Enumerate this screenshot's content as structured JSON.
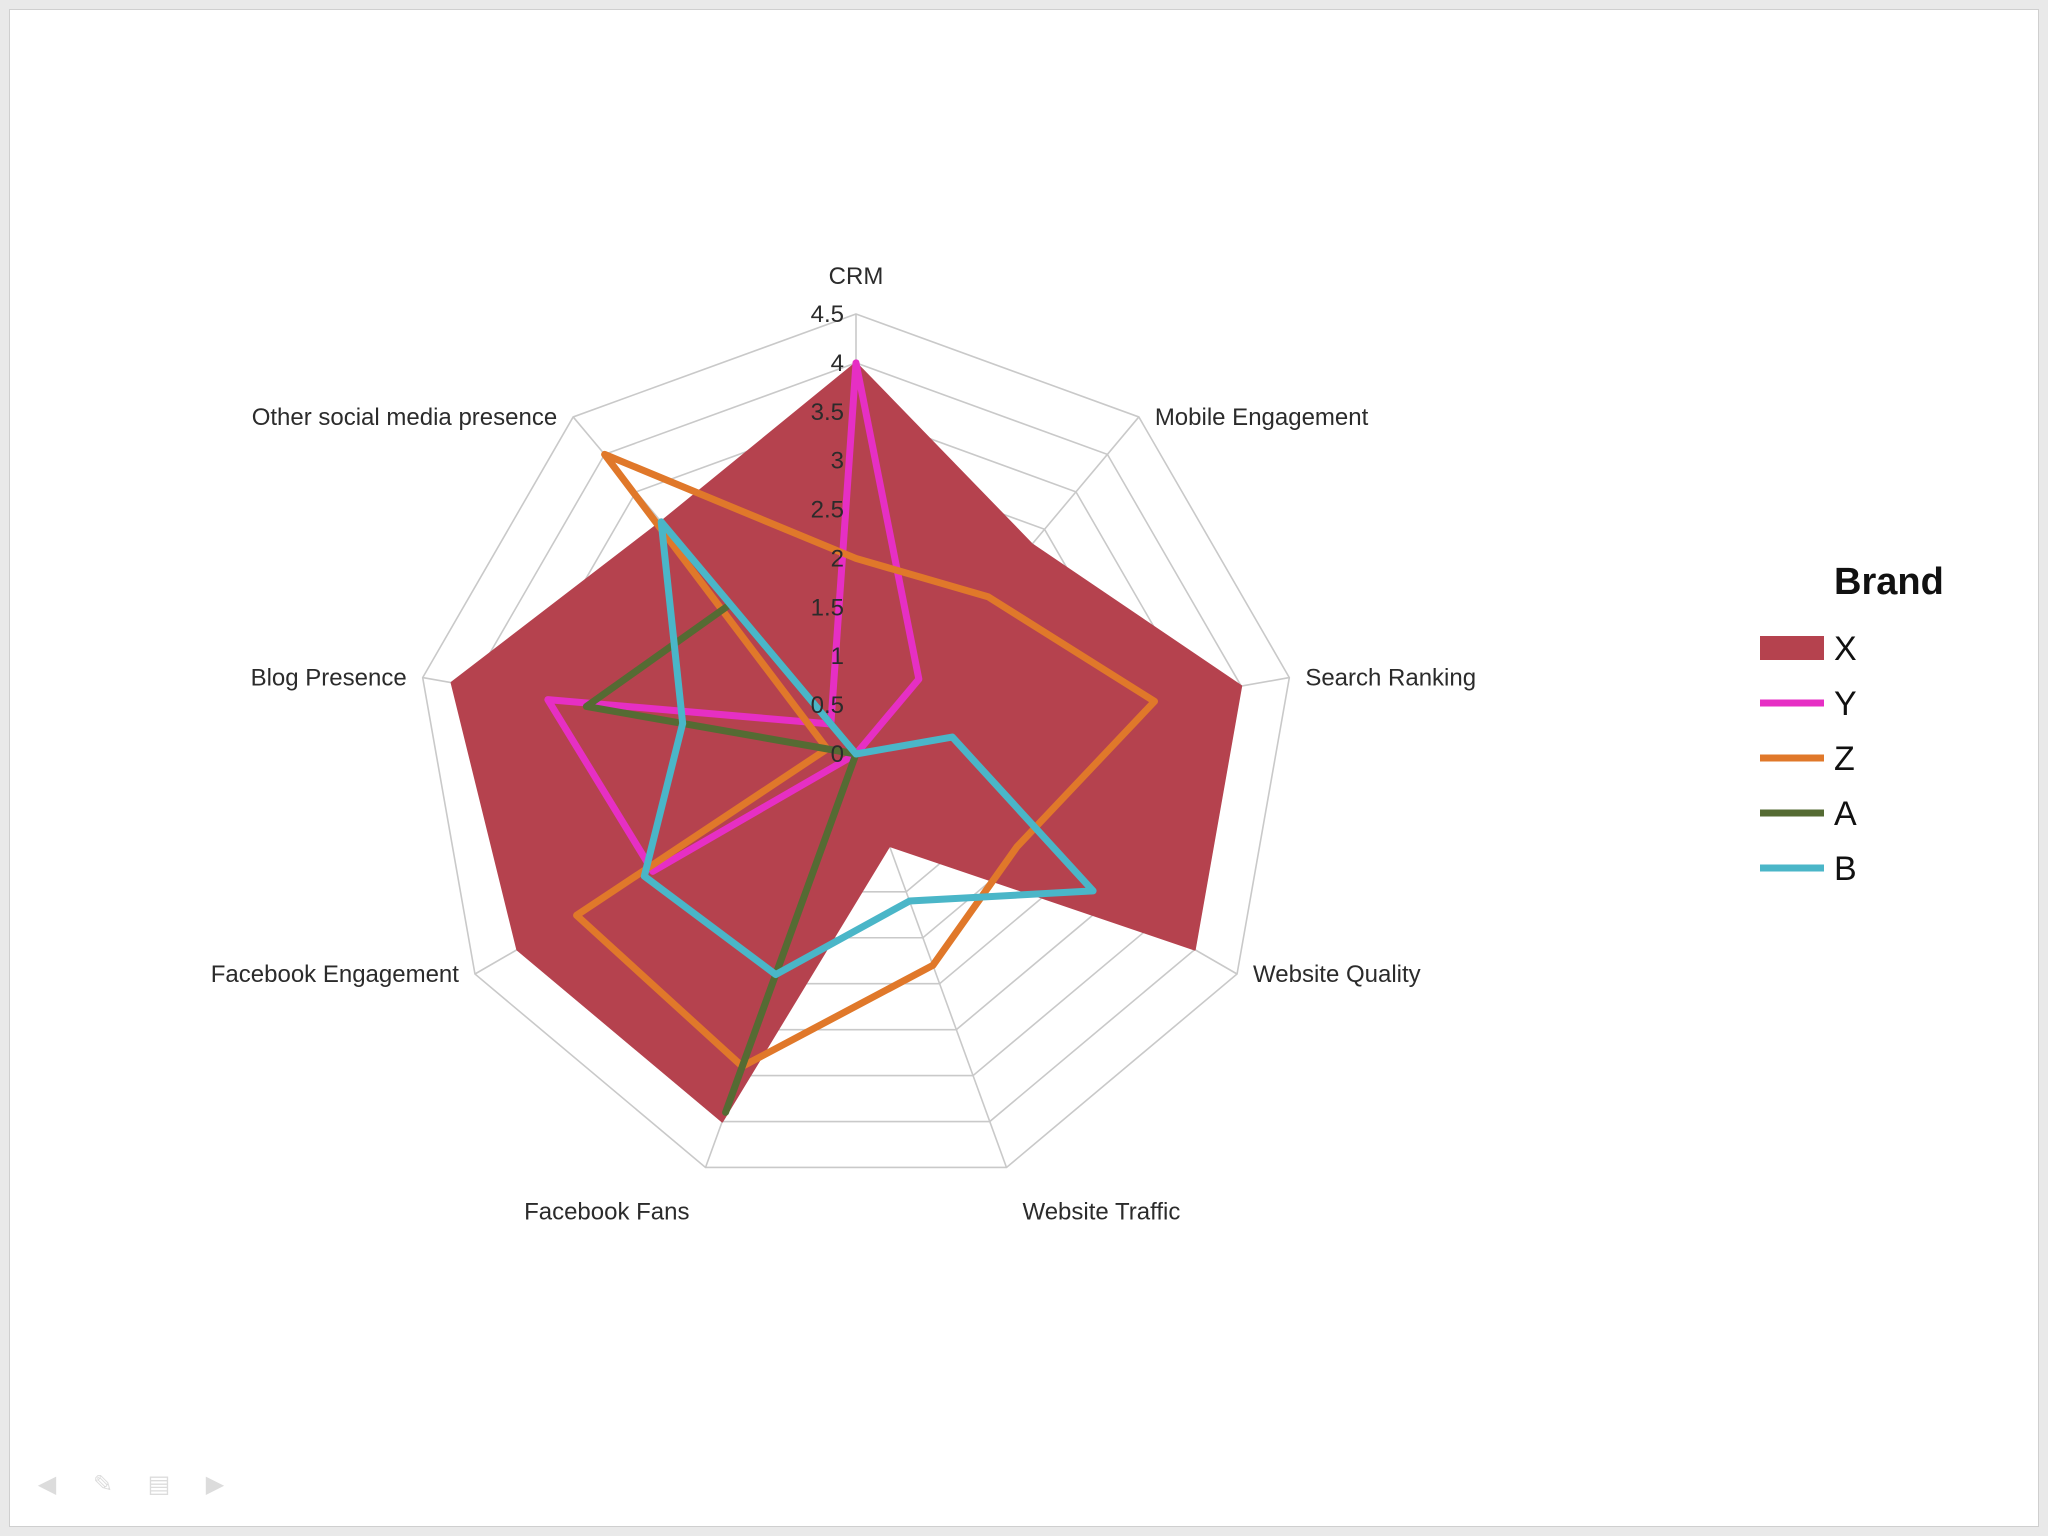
{
  "chart_data": {
    "type": "radar",
    "title": "",
    "axes": [
      "CRM",
      "Mobile Engagement",
      "Search Ranking",
      "Website Quality",
      "Website Traffic",
      "Facebook Fans",
      "Facebook Engagement",
      "Blog Presence",
      "Other social media presence"
    ],
    "range": [
      0,
      4.5
    ],
    "ticks": [
      "0",
      "0.5",
      "1",
      "1.5",
      "2",
      "2.5",
      "3",
      "3.5",
      "4",
      "4.5"
    ],
    "legend_title": "Brand",
    "legend_position": "right",
    "grid": true,
    "series": [
      {
        "name": "X",
        "style": "filled",
        "color": "#b5424e",
        "values": [
          4,
          2.8,
          4,
          4,
          1,
          4,
          4,
          4.2,
          3.1
        ]
      },
      {
        "name": "Y",
        "style": "line",
        "color": "#e62fc4",
        "values": [
          4,
          1,
          0,
          0,
          0,
          0,
          2.4,
          3.2,
          0.4
        ]
      },
      {
        "name": "Z",
        "style": "line",
        "color": "#e0782a",
        "values": [
          2,
          2.1,
          3.1,
          1.9,
          2.3,
          3.4,
          3.3,
          0.3,
          4
        ]
      },
      {
        "name": "A",
        "style": "line",
        "color": "#556b33",
        "values": [
          0,
          0,
          0,
          0,
          0,
          3.9,
          0,
          2.8,
          2.0
        ]
      },
      {
        "name": "B",
        "style": "line",
        "color": "#4ab6c8",
        "values": [
          0,
          0,
          1,
          2.8,
          1.6,
          2.4,
          2.5,
          1.8,
          3.1
        ]
      }
    ]
  },
  "slide_controls": {
    "prev": "◀",
    "pen": "✎",
    "menu": "▤",
    "next": "▶"
  }
}
